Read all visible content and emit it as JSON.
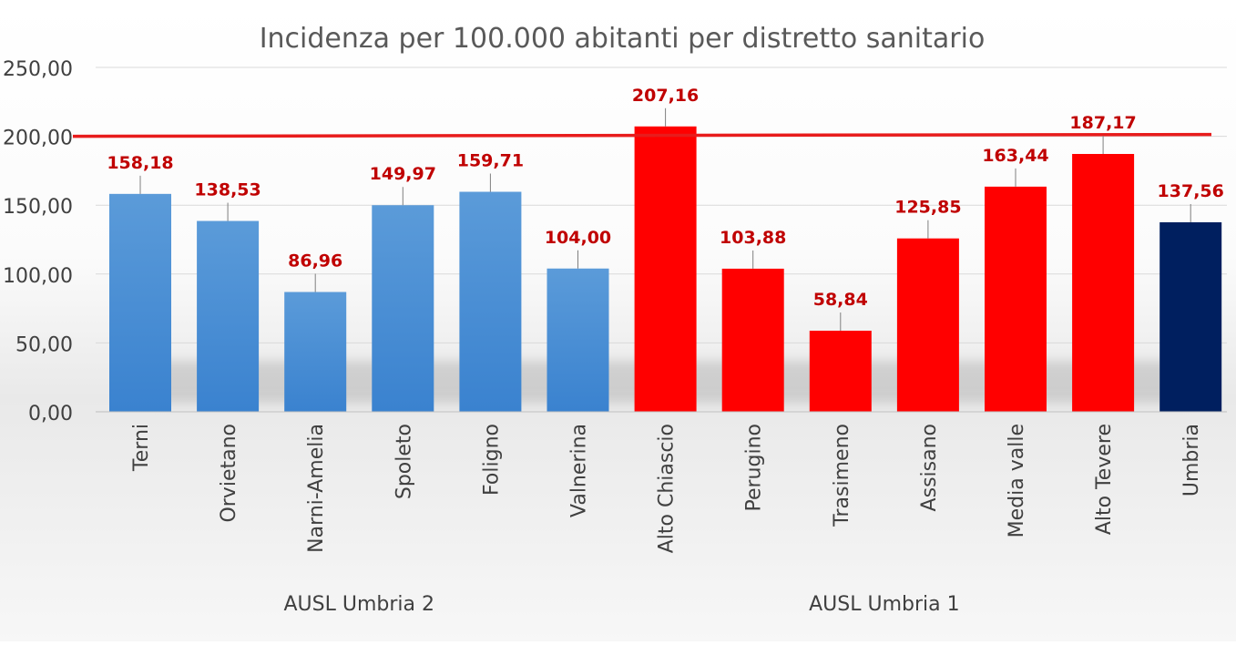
{
  "chart_data": {
    "type": "bar",
    "title": "Incidenza per 100.000 abitanti per distretto sanitario",
    "xlabel": "",
    "ylabel": "",
    "ylim": [
      0,
      250
    ],
    "y_ticks": [
      0,
      50,
      100,
      150,
      200,
      250
    ],
    "y_tick_labels": [
      "0,00",
      "50,00",
      "100,00",
      "150,00",
      "200,00",
      "250,00"
    ],
    "grid": true,
    "legend": "none",
    "categories": [
      "Terni",
      "Orvietano",
      "Narni-Amelia",
      "Spoleto",
      "Foligno",
      "Valnerina",
      "Alto Chiascio",
      "Perugino",
      "Trasimeno",
      "Assisano",
      "Media valle",
      "Alto Tevere",
      "Umbria"
    ],
    "values": [
      158.18,
      138.53,
      86.96,
      149.97,
      159.71,
      104.0,
      207.16,
      103.88,
      58.84,
      125.85,
      163.44,
      187.17,
      137.56
    ],
    "data_labels": [
      "158,18",
      "138,53",
      "86,96",
      "149,97",
      "159,71",
      "104,00",
      "207,16",
      "103,88",
      "58,84",
      "125,85",
      "163,44",
      "187,17",
      "137,56"
    ],
    "bar_colors": [
      "#4f93d8",
      "#4f93d8",
      "#4f93d8",
      "#4f93d8",
      "#4f93d8",
      "#4f93d8",
      "#ff0000",
      "#ff0000",
      "#ff0000",
      "#ff0000",
      "#ff0000",
      "#ff0000",
      "#001f5f"
    ],
    "groups": [
      {
        "label": "AUSL Umbria 2",
        "start": 0,
        "end": 5
      },
      {
        "label": "AUSL Umbria 1",
        "start": 6,
        "end": 11
      }
    ],
    "reference_line": {
      "value": 200,
      "color": "#e81c1c"
    },
    "colors": {
      "title": "#595959",
      "axis_text": "#404040",
      "data_label": "#c00000",
      "grid": "#d9d9d9"
    }
  }
}
